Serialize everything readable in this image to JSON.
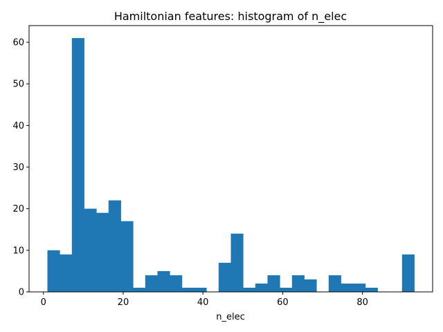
{
  "chart_data": {
    "type": "bar",
    "title": "Hamiltonian features: histogram of n_elec",
    "xlabel": "n_elec",
    "ylabel": "",
    "bin_edges": [
      1.0,
      4.07,
      7.13,
      10.2,
      13.27,
      16.33,
      19.4,
      22.47,
      25.53,
      28.6,
      31.67,
      34.73,
      37.8,
      40.87,
      43.93,
      47.0,
      50.07,
      53.13,
      56.2,
      59.27,
      62.33,
      65.4,
      68.47,
      71.53,
      74.6,
      77.67,
      80.73,
      83.8,
      86.87,
      89.93,
      93.0
    ],
    "counts": [
      10,
      9,
      61,
      20,
      19,
      22,
      17,
      1,
      4,
      5,
      4,
      1,
      1,
      0,
      7,
      14,
      1,
      2,
      4,
      1,
      4,
      3,
      0,
      4,
      2,
      2,
      1,
      0,
      0,
      9
    ],
    "xlim": [
      -3.6,
      97.6
    ],
    "ylim": [
      0,
      64
    ],
    "xticks": [
      0,
      20,
      40,
      60,
      80
    ],
    "yticks": [
      0,
      10,
      20,
      30,
      40,
      50,
      60
    ],
    "bar_color": "#1f77b4",
    "grid": false,
    "legend": "none"
  }
}
